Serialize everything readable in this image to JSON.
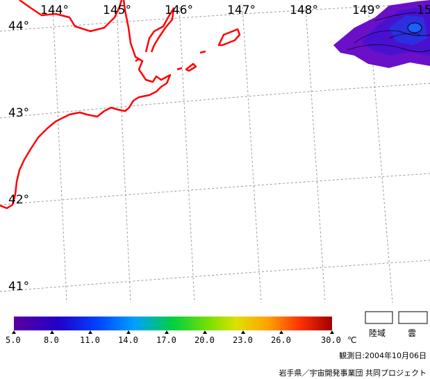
{
  "map": {
    "lon_labels": [
      "144°",
      "145°",
      "146°",
      "147°",
      "148°",
      "149°",
      "15"
    ],
    "lat_labels": [
      "44°",
      "43°",
      "42°",
      "41°"
    ]
  },
  "colorbar": {
    "ticks": [
      "5.0",
      "8.0",
      "11.0",
      "14.0",
      "17.0",
      "20.0",
      "23.0",
      "26.0",
      "30.0"
    ],
    "unit": "℃",
    "colors": [
      "#5a00a0",
      "#1a00c8",
      "#0060ff",
      "#00c0c0",
      "#00d040",
      "#c0e000",
      "#ffa000",
      "#ff4000",
      "#a00000"
    ]
  },
  "legend": {
    "land_label": "陸域",
    "cloud_label": "雲"
  },
  "footer": {
    "observation": "観測日:2004年10月06日",
    "credit": "岩手県／宇宙開発事業団 共同プロジェクト"
  }
}
